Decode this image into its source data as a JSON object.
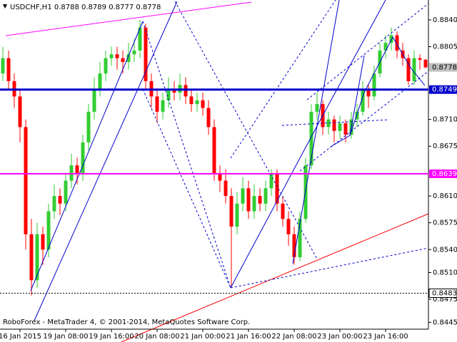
{
  "chart_data": {
    "type": "candlestick",
    "title": "USDCHF,H1  0.8788 0.8789 0.8777 0.8778",
    "footer": "RoboForex - MetaTrader 4, © 2001-2014, MetaQuotes Software Corp.",
    "up_color": "#32cd32",
    "down_color": "#ff0000",
    "ylim": [
      0.8436,
      0.8866
    ],
    "yticks": [
      {
        "value": 0.884,
        "label": "0.8840"
      },
      {
        "value": 0.8805,
        "label": "0.8805"
      },
      {
        "value": 0.871,
        "label": "0.8710"
      },
      {
        "value": 0.8675,
        "label": "0.8675"
      },
      {
        "value": 0.861,
        "label": "0.8610"
      },
      {
        "value": 0.8575,
        "label": "0.8575"
      },
      {
        "value": 0.854,
        "label": "0.8540"
      },
      {
        "value": 0.851,
        "label": "0.8510"
      },
      {
        "value": 0.8475,
        "label": "0.8475"
      },
      {
        "value": 0.8445,
        "label": "0.8445"
      }
    ],
    "levels": [
      {
        "value": 0.8778,
        "label": "0.8778",
        "color": "#c0c0c0",
        "style": "none"
      },
      {
        "value": 0.8749,
        "label": "0.8749",
        "color": "#0000cd",
        "style": "solid"
      },
      {
        "value": 0.8639,
        "label": "0.8639",
        "color": "#ff00ff",
        "style": "solid"
      },
      {
        "value": 0.8483,
        "label": "0.8483",
        "color": "#000000",
        "style": "dotted"
      }
    ],
    "categories": [
      null,
      null,
      null,
      "16 Jan 2015",
      null,
      null,
      null,
      null,
      null,
      null,
      null,
      "19 Jan 08:00",
      null,
      null,
      null,
      null,
      null,
      null,
      null,
      "19 Jan 16:00",
      null,
      null,
      null,
      null,
      null,
      null,
      null,
      "20 Jan 08:00",
      null,
      null,
      null,
      null,
      null,
      null,
      null,
      "21 Jan 00:00",
      null,
      null,
      null,
      null,
      null,
      null,
      null,
      "21 Jan 16:00",
      null,
      null,
      null,
      null,
      null,
      null,
      null,
      "22 Jan 08:00",
      null,
      null,
      null,
      null,
      null,
      null,
      null,
      "23 Jan 00:00",
      null,
      null,
      null,
      null,
      null,
      null,
      null,
      "23 Jan 16:00",
      null,
      null,
      null,
      null,
      null,
      null,
      null
    ],
    "open": [
      0.877,
      0.879,
      0.876,
      0.874,
      0.87,
      0.856,
      0.85,
      0.856,
      0.854,
      0.859,
      0.861,
      0.86,
      0.863,
      0.865,
      0.864,
      0.868,
      0.872,
      0.875,
      0.877,
      0.879,
      0.8795,
      0.879,
      0.8785,
      0.8795,
      0.88,
      0.883,
      0.876,
      0.874,
      0.872,
      0.8735,
      0.875,
      0.8745,
      0.8755,
      0.874,
      0.873,
      0.8735,
      0.8725,
      0.87,
      0.864,
      0.863,
      0.861,
      0.857,
      0.86,
      0.862,
      0.859,
      0.861,
      0.86,
      0.862,
      0.864,
      0.86,
      0.858,
      0.856,
      0.853,
      0.858,
      0.865,
      0.872,
      0.873,
      0.87,
      0.871,
      0.8695,
      0.8705,
      0.869,
      0.871,
      0.872,
      0.875,
      0.874,
      0.877,
      0.88,
      0.881,
      0.882,
      0.88,
      0.879,
      0.876,
      0.879,
      0.8788
    ],
    "high": [
      0.8805,
      0.88,
      0.877,
      0.875,
      0.871,
      0.858,
      0.8575,
      0.857,
      0.86,
      0.8625,
      0.862,
      0.864,
      0.8665,
      0.866,
      0.869,
      0.873,
      0.8765,
      0.8785,
      0.88,
      0.8805,
      0.8805,
      0.88,
      0.881,
      0.8815,
      0.884,
      0.8835,
      0.877,
      0.875,
      0.8745,
      0.8765,
      0.876,
      0.877,
      0.8765,
      0.875,
      0.8745,
      0.8745,
      0.8735,
      0.871,
      0.865,
      0.8645,
      0.862,
      0.8615,
      0.8635,
      0.863,
      0.8625,
      0.862,
      0.863,
      0.8645,
      0.8645,
      0.861,
      0.859,
      0.857,
      0.859,
      0.866,
      0.873,
      0.8745,
      0.8735,
      0.872,
      0.8715,
      0.8715,
      0.871,
      0.872,
      0.873,
      0.876,
      0.8755,
      0.878,
      0.881,
      0.882,
      0.883,
      0.8825,
      0.881,
      0.8795,
      0.88,
      0.8795,
      0.8789
    ],
    "low": [
      0.876,
      0.875,
      0.8725,
      0.868,
      0.854,
      0.848,
      0.849,
      0.852,
      0.853,
      0.858,
      0.8585,
      0.859,
      0.862,
      0.8625,
      0.863,
      0.867,
      0.871,
      0.874,
      0.876,
      0.878,
      0.8775,
      0.877,
      0.8775,
      0.8785,
      0.879,
      0.875,
      0.8725,
      0.8705,
      0.871,
      0.8725,
      0.8735,
      0.8735,
      0.873,
      0.872,
      0.872,
      0.8715,
      0.869,
      0.863,
      0.8615,
      0.86,
      0.849,
      0.856,
      0.859,
      0.858,
      0.858,
      0.859,
      0.859,
      0.861,
      0.859,
      0.857,
      0.8545,
      0.852,
      0.8525,
      0.8575,
      0.8645,
      0.871,
      0.869,
      0.869,
      0.868,
      0.8685,
      0.868,
      0.8685,
      0.87,
      0.8715,
      0.8725,
      0.8735,
      0.8765,
      0.879,
      0.88,
      0.879,
      0.878,
      0.8755,
      0.8755,
      0.8775,
      0.8777
    ],
    "close": [
      0.879,
      0.876,
      0.874,
      0.87,
      0.856,
      0.85,
      0.856,
      0.854,
      0.859,
      0.861,
      0.86,
      0.863,
      0.865,
      0.864,
      0.868,
      0.872,
      0.875,
      0.877,
      0.879,
      0.8795,
      0.879,
      0.8785,
      0.8795,
      0.88,
      0.883,
      0.876,
      0.874,
      0.872,
      0.8735,
      0.875,
      0.8745,
      0.8755,
      0.874,
      0.873,
      0.8735,
      0.8725,
      0.87,
      0.864,
      0.863,
      0.861,
      0.857,
      0.86,
      0.862,
      0.859,
      0.861,
      0.86,
      0.862,
      0.864,
      0.86,
      0.858,
      0.856,
      0.853,
      0.858,
      0.865,
      0.872,
      0.873,
      0.87,
      0.871,
      0.8695,
      0.8705,
      0.869,
      0.871,
      0.872,
      0.875,
      0.874,
      0.877,
      0.88,
      0.881,
      0.882,
      0.88,
      0.879,
      0.876,
      0.879,
      0.8788,
      0.8778
    ]
  }
}
